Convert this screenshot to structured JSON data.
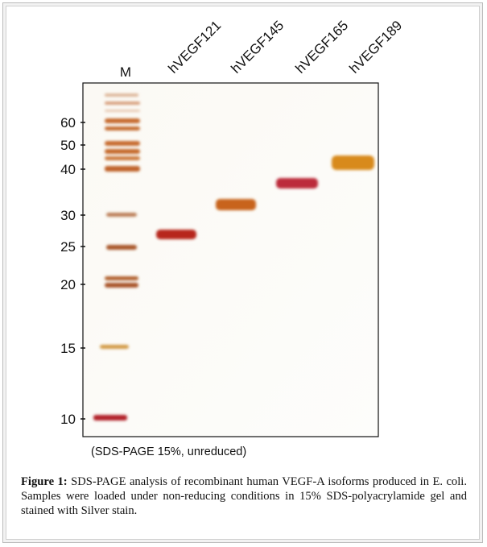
{
  "lanes": [
    "M",
    "hVEGF121",
    "hVEGF145",
    "hVEGF165",
    "hVEGF189"
  ],
  "markers": [
    "60",
    "50",
    "40",
    "30",
    "25",
    "20",
    "15",
    "10"
  ],
  "gel_note": "(SDS-PAGE 15%, unreduced)",
  "caption": {
    "label": "Figure 1:",
    "text": "SDS-PAGE analysis of recombinant human VEGF-A isoforms produced in E. coli. Samples were loaded under non-reducing conditions in 15% SDS-polyacrylamide gel and stained with Silver stain."
  }
}
